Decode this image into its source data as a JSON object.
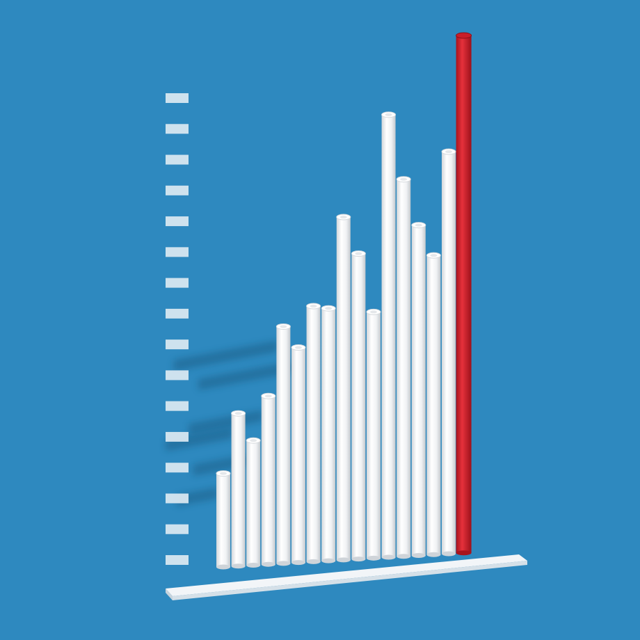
{
  "chart_data": {
    "type": "bar",
    "title": "",
    "xlabel": "",
    "ylabel": "",
    "values": [
      3.0,
      4.9,
      4.0,
      5.4,
      7.6,
      6.9,
      8.2,
      8.1,
      11.0,
      9.8,
      7.9,
      14.2,
      12.1,
      10.6,
      9.6,
      12.9,
      16.6
    ],
    "highlight_index": 16,
    "ylim": [
      0,
      17
    ],
    "y_tick_count": 16,
    "grid": false,
    "legend": "none",
    "colors": {
      "background": "#2e89bf",
      "bar": "#f4f4f4",
      "highlight": "#d42330",
      "tick": "#dce9f2",
      "base": "#f2f5f8"
    }
  }
}
